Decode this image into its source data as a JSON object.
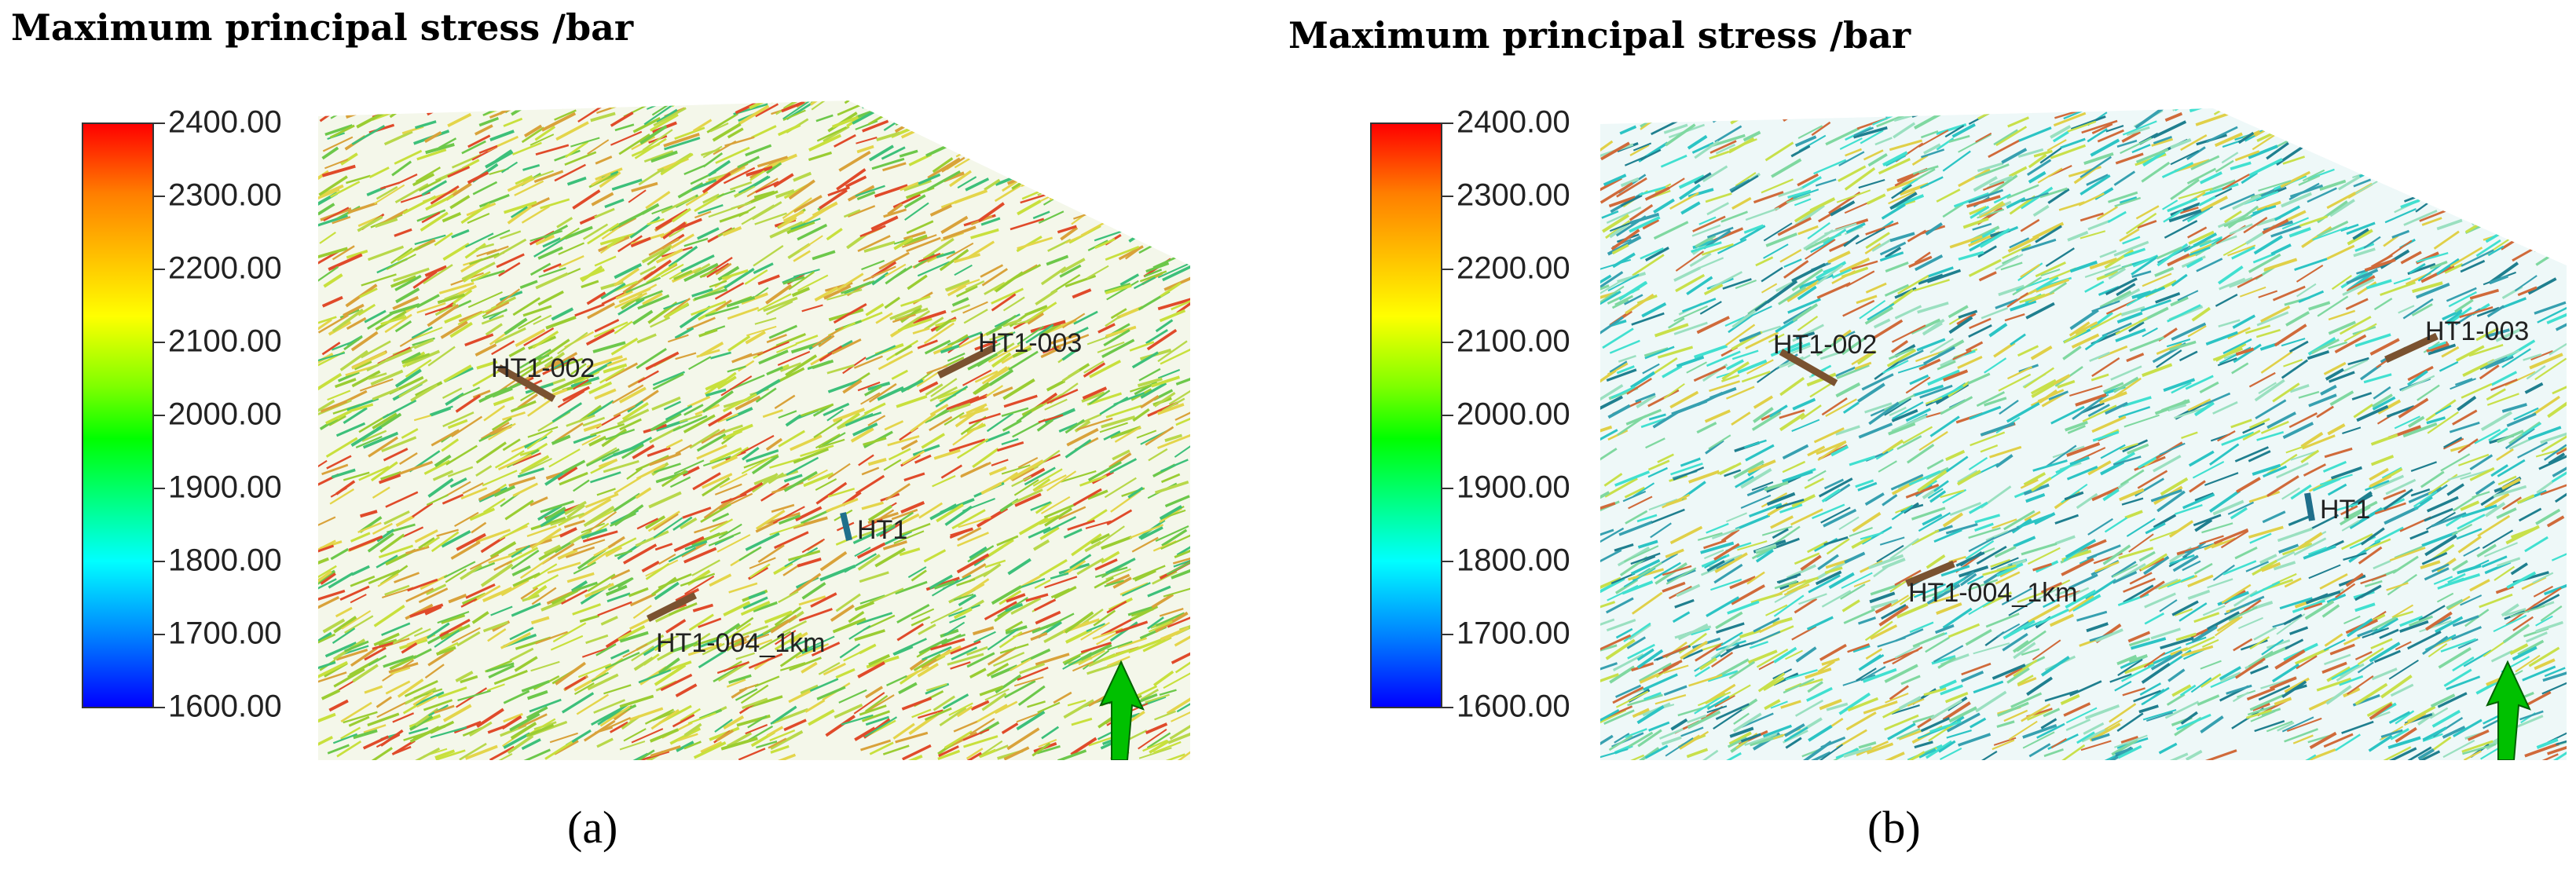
{
  "figure": {
    "colorbar": {
      "ticks": [
        "2400.00",
        "2300.00",
        "2200.00",
        "2100.00",
        "2000.00",
        "1900.00",
        "1800.00",
        "1700.00",
        "1600.00"
      ],
      "min": 1600,
      "max": 2400,
      "colors": [
        "#ff0000",
        "#ff7f00",
        "#ffff00",
        "#7fff00",
        "#00ff00",
        "#00ffff",
        "#007fff",
        "#0000ff"
      ]
    },
    "panels": [
      {
        "id": "a",
        "title": "Maximum principal stress /bar",
        "sublabel": "(a)",
        "dominant_color": "#9acd32",
        "wells": [
          {
            "name": "HT1-002"
          },
          {
            "name": "HT1-003"
          },
          {
            "name": "HT1"
          },
          {
            "name": "HT1-004_1km"
          }
        ]
      },
      {
        "id": "b",
        "title": "Maximum principal stress /bar",
        "sublabel": "(b)",
        "dominant_color": "#40e0d0",
        "wells": [
          {
            "name": "HT1-002"
          },
          {
            "name": "HT1-003"
          },
          {
            "name": "HT1"
          },
          {
            "name": "HT1-004_1km"
          }
        ]
      }
    ],
    "north_arrow_color": "#00c000"
  }
}
